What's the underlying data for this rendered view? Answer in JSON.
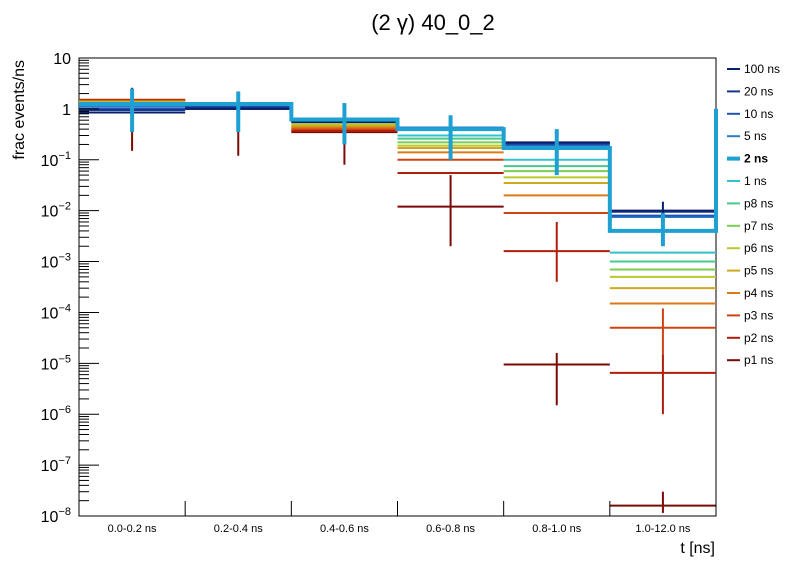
{
  "chart_data": {
    "type": "step",
    "title": "(2 γ) 40_0_2",
    "xlabel": "t [ns]",
    "ylabel": "frac events/ns",
    "yscale": "log",
    "ylim": [
      1e-08,
      10
    ],
    "grid": false,
    "legend_position": "right",
    "categories": [
      "0.0-0.2 ns",
      "0.2-0.4 ns",
      "0.4-0.6 ns",
      "0.6-0.8 ns",
      "0.8-1.0 ns",
      "1.0-12.0 ns"
    ],
    "y_ticks": [
      {
        "value": 1e-08,
        "base": "10",
        "exp": "−8"
      },
      {
        "value": 1e-07,
        "base": "10",
        "exp": "−7"
      },
      {
        "value": 1e-06,
        "base": "10",
        "exp": "−6"
      },
      {
        "value": 1e-05,
        "base": "10",
        "exp": "−5"
      },
      {
        "value": 0.0001,
        "base": "10",
        "exp": "−4"
      },
      {
        "value": 0.001,
        "base": "10",
        "exp": "−3"
      },
      {
        "value": 0.01,
        "base": "10",
        "exp": "−2"
      },
      {
        "value": 0.1,
        "base": "10",
        "exp": "−1"
      },
      {
        "value": 1,
        "base": "1",
        "exp": ""
      },
      {
        "value": 10,
        "base": "10",
        "exp": ""
      }
    ],
    "series": [
      {
        "name": "100 ns",
        "color": "#0a1f6e",
        "width": 2,
        "values": [
          0.85,
          1.0,
          0.55,
          0.4,
          0.22,
          0.01
        ],
        "errors": [
          [
            0.6,
            2.0
          ],
          [
            0.6,
            1.8
          ],
          [
            0.25,
            0.9
          ],
          [
            0.15,
            0.6
          ],
          [
            0.07,
            0.35
          ],
          [
            0.004,
            0.015
          ]
        ]
      },
      {
        "name": "20 ns",
        "color": "#16378f",
        "width": 2,
        "values": [
          0.95,
          1.05,
          0.58,
          0.41,
          0.21,
          0.0095
        ],
        "errors": null
      },
      {
        "name": "10 ns",
        "color": "#1c55b0",
        "width": 2,
        "values": [
          1.0,
          1.1,
          0.6,
          0.42,
          0.2,
          0.008
        ],
        "errors": null
      },
      {
        "name": "5 ns",
        "color": "#2c7ccc",
        "width": 2,
        "values": [
          1.1,
          1.15,
          0.62,
          0.43,
          0.19,
          0.0075
        ],
        "errors": null
      },
      {
        "name": "2 ns",
        "color": "#1fa0d2",
        "width": 4,
        "values": [
          1.25,
          1.25,
          0.62,
          0.4,
          0.17,
          0.004
        ],
        "errors": [
          [
            0.35,
            2.5
          ],
          [
            0.35,
            2.2
          ],
          [
            0.2,
            1.3
          ],
          [
            0.1,
            0.75
          ],
          [
            0.05,
            0.4
          ],
          [
            0.002,
            0.009
          ]
        ]
      },
      {
        "name": "1 ns",
        "color": "#33c2c8",
        "width": 2,
        "values": [
          1.22,
          1.2,
          0.6,
          0.3,
          0.1,
          0.0015
        ],
        "errors": null
      },
      {
        "name": "p8 ns",
        "color": "#46c98d",
        "width": 2,
        "values": [
          1.25,
          1.2,
          0.58,
          0.26,
          0.075,
          0.001
        ],
        "errors": null
      },
      {
        "name": "p7 ns",
        "color": "#7ccb52",
        "width": 2,
        "values": [
          1.3,
          1.2,
          0.55,
          0.22,
          0.06,
          0.0007
        ],
        "errors": null
      },
      {
        "name": "p6 ns",
        "color": "#b9c92c",
        "width": 2,
        "values": [
          1.35,
          1.2,
          0.5,
          0.19,
          0.045,
          0.0005
        ],
        "errors": null
      },
      {
        "name": "p5 ns",
        "color": "#d0a820",
        "width": 2,
        "values": [
          1.38,
          1.18,
          0.47,
          0.17,
          0.035,
          0.0003
        ],
        "errors": null
      },
      {
        "name": "p4 ns",
        "color": "#dc7a18",
        "width": 2,
        "values": [
          1.4,
          1.15,
          0.43,
          0.14,
          0.02,
          0.00015
        ],
        "errors": null
      },
      {
        "name": "p3 ns",
        "color": "#cf4312",
        "width": 2,
        "values": [
          1.45,
          1.1,
          0.4,
          0.1,
          0.009,
          5e-05
        ],
        "errors": [
          null,
          null,
          null,
          null,
          null,
          [
            1.5e-05,
            0.00012
          ]
        ]
      },
      {
        "name": "p2 ns",
        "color": "#b01e0c",
        "width": 2,
        "values": [
          1.5,
          1.05,
          0.37,
          0.055,
          0.0016,
          6.5e-06
        ],
        "errors": [
          null,
          null,
          null,
          null,
          [
            0.0004,
            0.006
          ],
          [
            1e-06,
            1.5e-05
          ]
        ]
      },
      {
        "name": "p1 ns",
        "color": "#7a0a06",
        "width": 2,
        "values": [
          1.5,
          1.0,
          0.35,
          0.012,
          9.5e-06,
          1.6e-08
        ],
        "errors": [
          [
            0.15,
            2.6
          ],
          [
            0.12,
            2.0
          ],
          [
            0.08,
            1.2
          ],
          [
            0.002,
            0.05
          ],
          [
            1.5e-06,
            1.6e-05
          ],
          [
            1.15e-08,
            3e-08
          ]
        ]
      }
    ]
  }
}
